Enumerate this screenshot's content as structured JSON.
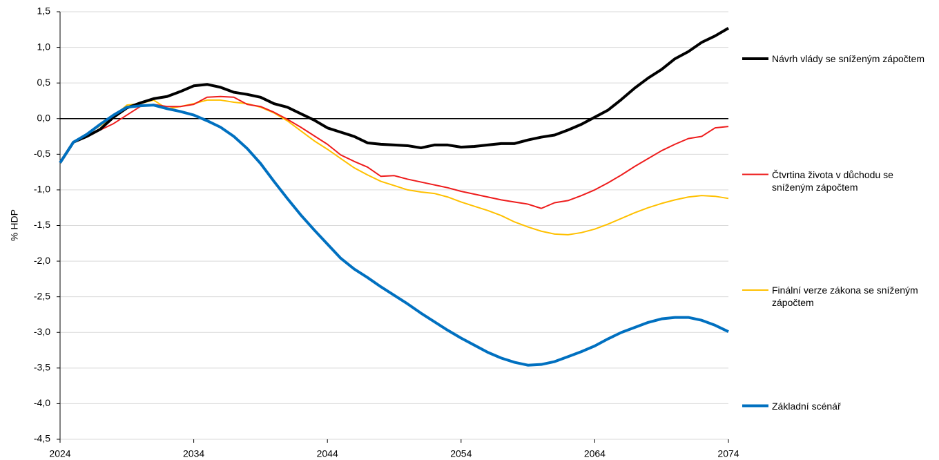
{
  "chart_data": {
    "type": "line",
    "y_label": "% HDP",
    "x": [
      2024,
      2025,
      2026,
      2027,
      2028,
      2029,
      2030,
      2031,
      2032,
      2033,
      2034,
      2035,
      2036,
      2037,
      2038,
      2039,
      2040,
      2041,
      2042,
      2043,
      2044,
      2045,
      2046,
      2047,
      2048,
      2049,
      2050,
      2051,
      2052,
      2053,
      2054,
      2055,
      2056,
      2057,
      2058,
      2059,
      2060,
      2061,
      2062,
      2063,
      2064,
      2065,
      2066,
      2067,
      2068,
      2069,
      2070,
      2071,
      2072,
      2073,
      2074
    ],
    "xlim": [
      2024,
      2074
    ],
    "xticks": [
      2024,
      2034,
      2044,
      2054,
      2064,
      2074
    ],
    "ylim": [
      -4.5,
      1.5
    ],
    "yticks": [
      {
        "value": -4.5,
        "label": "-4,5"
      },
      {
        "value": -4.0,
        "label": "-4,0"
      },
      {
        "value": -3.5,
        "label": "-3,5"
      },
      {
        "value": -3.0,
        "label": "-3,0"
      },
      {
        "value": -2.5,
        "label": "-2,5"
      },
      {
        "value": -2.0,
        "label": "-2,0"
      },
      {
        "value": -1.5,
        "label": "-1,5"
      },
      {
        "value": -1.0,
        "label": "-1,0"
      },
      {
        "value": -0.5,
        "label": "-0,5"
      },
      {
        "value": 0,
        "label": "0,0"
      },
      {
        "value": 0.5,
        "label": "0,5"
      },
      {
        "value": 1.0,
        "label": "1,0"
      },
      {
        "value": 1.5,
        "label": "1,5"
      }
    ],
    "grid": true,
    "legend": "right",
    "series": [
      {
        "name": "Návrh vlády se sníženým zápočtem",
        "color": "#000000",
        "values": [
          -0.62,
          -0.33,
          -0.25,
          -0.15,
          0.02,
          0.15,
          0.22,
          0.28,
          0.31,
          0.38,
          0.46,
          0.48,
          0.44,
          0.37,
          0.34,
          0.3,
          0.21,
          0.16,
          0.07,
          -0.02,
          -0.13,
          -0.19,
          -0.25,
          -0.34,
          -0.36,
          -0.37,
          -0.38,
          -0.41,
          -0.37,
          -0.37,
          -0.4,
          -0.39,
          -0.37,
          -0.35,
          -0.35,
          -0.3,
          -0.26,
          -0.23,
          -0.16,
          -0.08,
          0.02,
          0.12,
          0.27,
          0.43,
          0.57,
          0.69,
          0.84,
          0.94,
          1.07,
          1.16,
          1.27
        ]
      },
      {
        "name": "Čtvrtina života v důchodu se sníženým zápočtem",
        "color": "#ee1c1c",
        "values": [
          -0.62,
          -0.33,
          -0.24,
          -0.16,
          -0.07,
          0.05,
          0.17,
          0.2,
          0.17,
          0.17,
          0.2,
          0.3,
          0.31,
          0.3,
          0.2,
          0.17,
          0.09,
          -0.01,
          -0.12,
          -0.24,
          -0.36,
          -0.51,
          -0.6,
          -0.68,
          -0.81,
          -0.8,
          -0.85,
          -0.89,
          -0.93,
          -0.97,
          -1.02,
          -1.06,
          -1.1,
          -1.14,
          -1.17,
          -1.2,
          -1.26,
          -1.18,
          -1.15,
          -1.08,
          -1.0,
          -0.9,
          -0.79,
          -0.67,
          -0.56,
          -0.45,
          -0.36,
          -0.28,
          -0.25,
          -0.13,
          -0.11
        ]
      },
      {
        "name": "Finální verze zákona se sníženým zápočtem",
        "color": "#ffc000",
        "values": [
          -0.62,
          -0.33,
          -0.22,
          -0.1,
          0.03,
          0.19,
          0.21,
          0.26,
          0.14,
          0.17,
          0.21,
          0.26,
          0.26,
          0.23,
          0.21,
          0.16,
          0.08,
          -0.03,
          -0.17,
          -0.31,
          -0.43,
          -0.56,
          -0.69,
          -0.79,
          -0.88,
          -0.94,
          -1.0,
          -1.03,
          -1.05,
          -1.1,
          -1.17,
          -1.23,
          -1.29,
          -1.36,
          -1.45,
          -1.52,
          -1.58,
          -1.62,
          -1.63,
          -1.6,
          -1.55,
          -1.48,
          -1.4,
          -1.32,
          -1.25,
          -1.19,
          -1.14,
          -1.1,
          -1.08,
          -1.09,
          -1.12
        ]
      },
      {
        "name": "Základní scénář",
        "color": "#0070c0",
        "values": [
          -0.62,
          -0.33,
          -0.22,
          -0.08,
          0.05,
          0.16,
          0.18,
          0.19,
          0.14,
          0.1,
          0.05,
          -0.03,
          -0.12,
          -0.25,
          -0.42,
          -0.63,
          -0.88,
          -1.12,
          -1.35,
          -1.56,
          -1.76,
          -1.96,
          -2.11,
          -2.23,
          -2.36,
          -2.48,
          -2.6,
          -2.73,
          -2.85,
          -2.97,
          -3.08,
          -3.18,
          -3.28,
          -3.36,
          -3.42,
          -3.46,
          -3.45,
          -3.41,
          -3.34,
          -3.27,
          -3.19,
          -3.09,
          -3.0,
          -2.93,
          -2.86,
          -2.81,
          -2.79,
          -2.79,
          -2.83,
          -2.9,
          -2.99
        ]
      }
    ]
  }
}
